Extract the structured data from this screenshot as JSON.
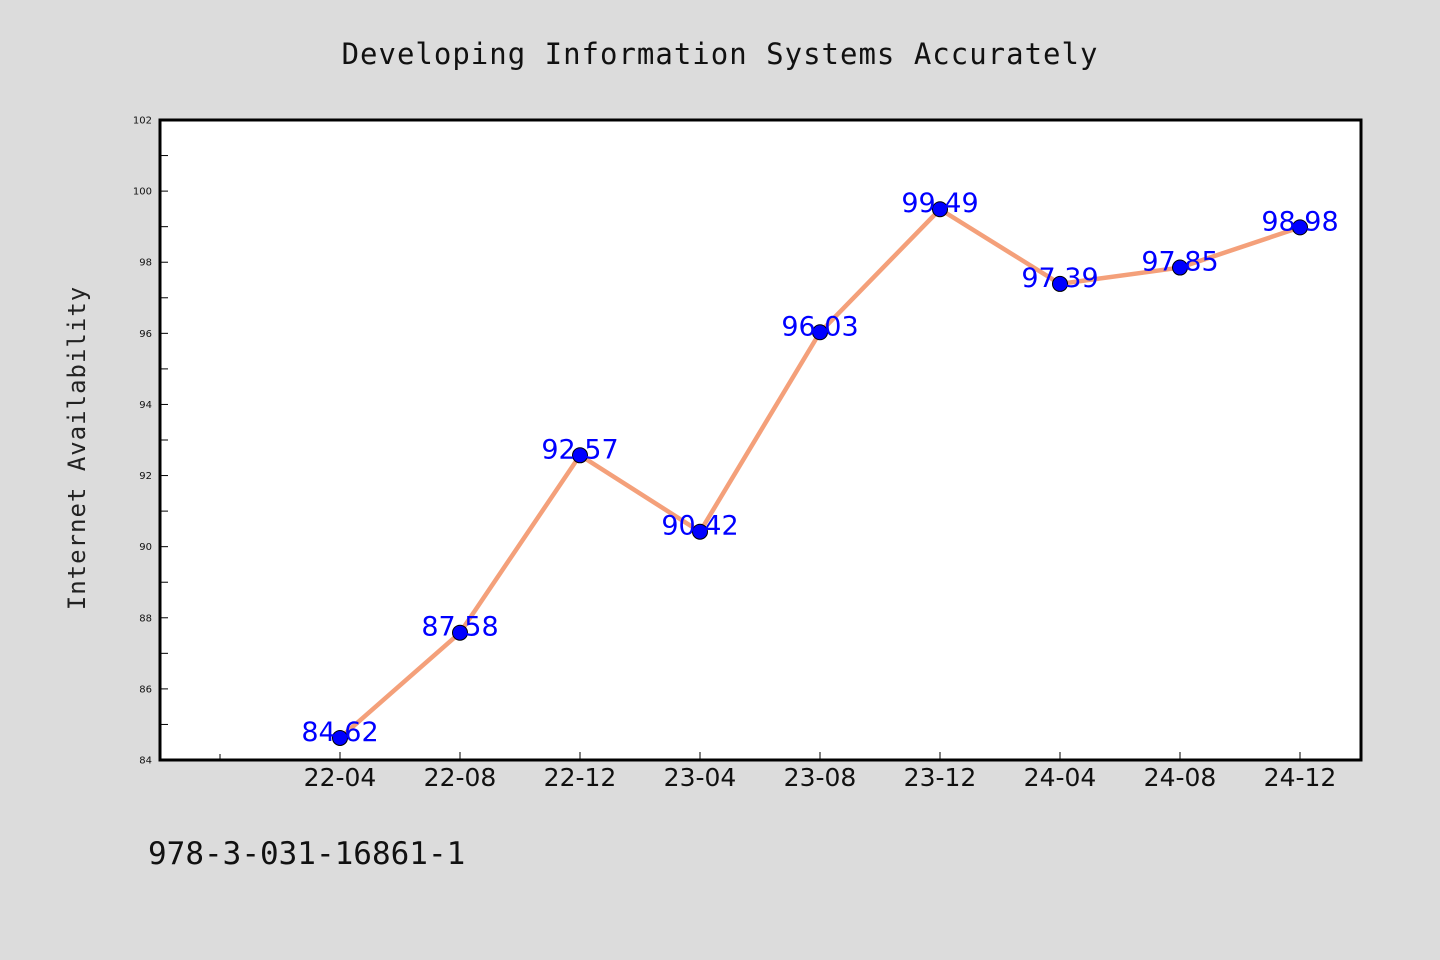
{
  "chart_data": {
    "type": "line",
    "title": "Developing Information Systems Accurately",
    "xlabel": "",
    "ylabel": "Internet Availability",
    "categories": [
      "22-04",
      "22-08",
      "22-12",
      "23-04",
      "23-08",
      "23-12",
      "24-04",
      "24-08",
      "24-12"
    ],
    "series": [
      {
        "values": [
          84.62,
          87.58,
          92.57,
          90.42,
          96.03,
          99.49,
          97.39,
          97.85,
          98.98
        ],
        "data_labels": [
          "84.62",
          "87.58",
          "92.57",
          "90.42",
          "96.03",
          "99.49",
          "97.39",
          "97.85",
          "98.98"
        ],
        "line_color": "#f4a07a",
        "marker_color": "#0000ff"
      }
    ],
    "ylim": [
      84,
      102
    ],
    "yticks": [
      84,
      86,
      88,
      90,
      92,
      94,
      96,
      98,
      100,
      102
    ],
    "ytick_labels": [
      "84",
      "86",
      "88",
      "90",
      "92",
      "94",
      "96",
      "98",
      "100",
      "102"
    ],
    "grid": false,
    "legend": "none",
    "annotation": "978-3-031-16861-1"
  }
}
